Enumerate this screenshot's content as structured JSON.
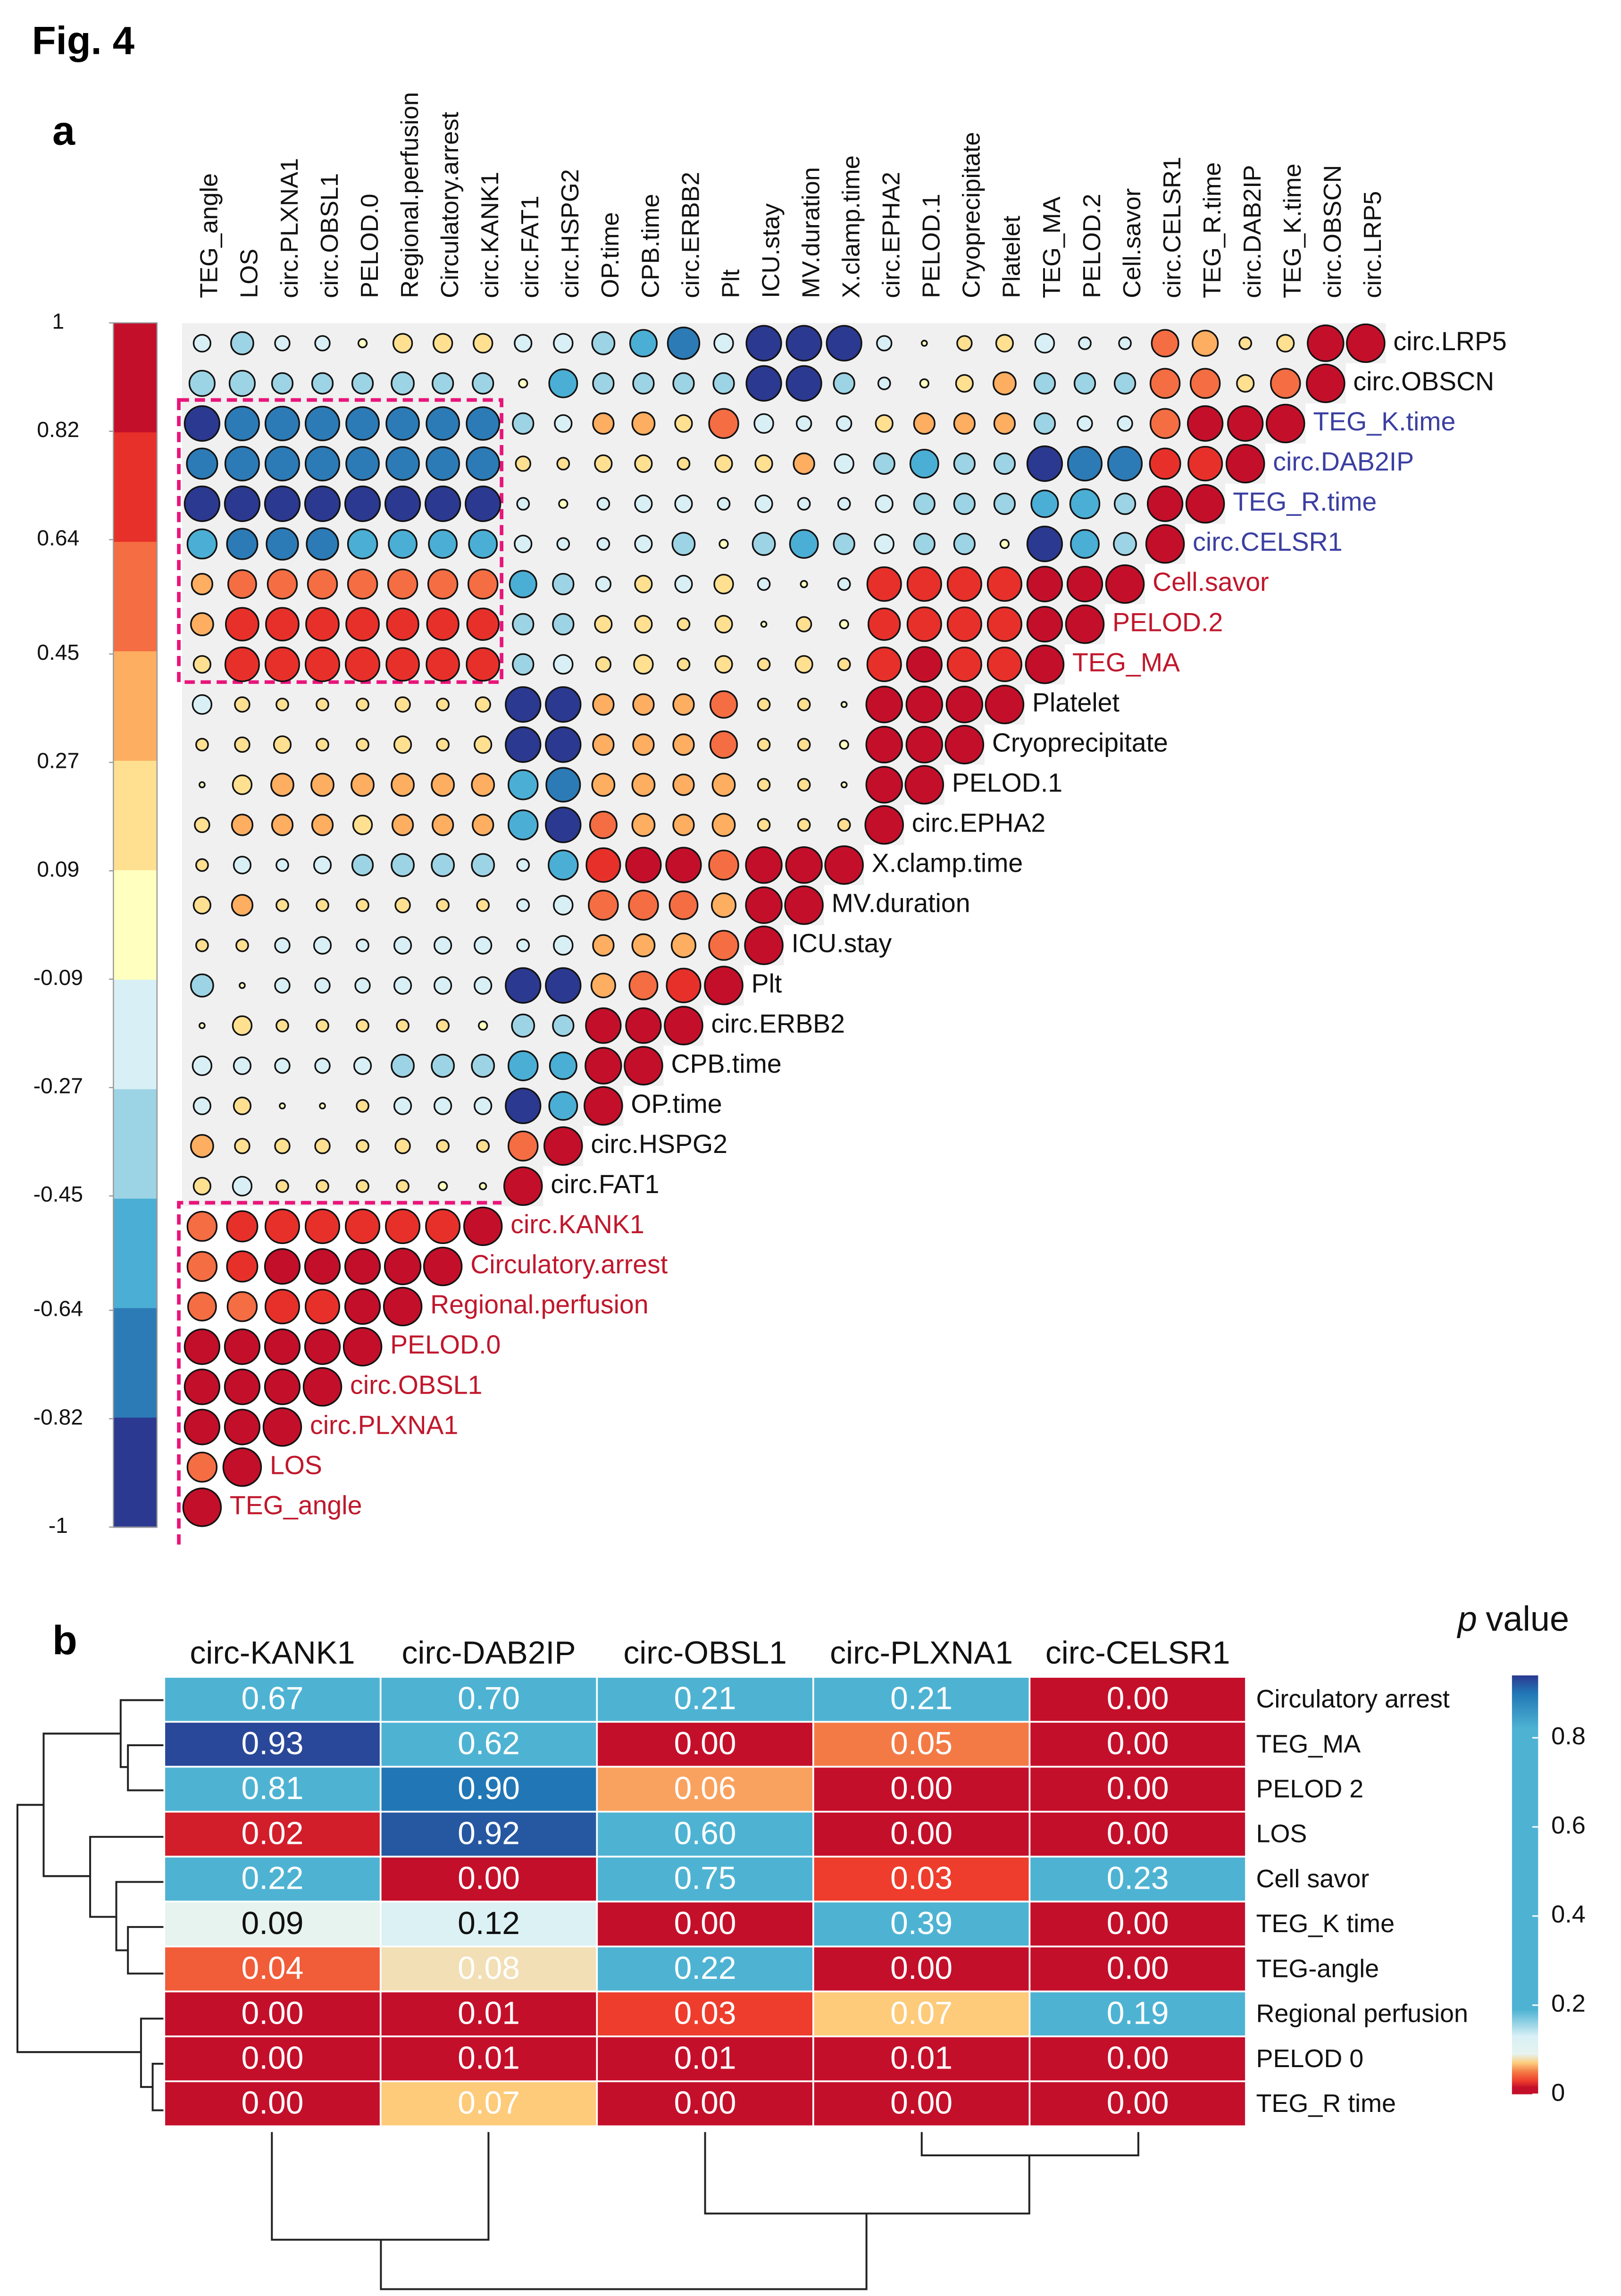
{
  "figure_label": "Fig. 4",
  "chart_data": [
    {
      "type": "correlogram",
      "panel": "a",
      "variables": [
        "TEG_angle",
        "LOS",
        "circ.PLXNA1",
        "circ.OBSL1",
        "PELOD.0",
        "Regional.perfusion",
        "Circulatory.arrest",
        "circ.KANK1",
        "circ.FAT1",
        "circ.HSPG2",
        "OP.time",
        "CPB.time",
        "circ.ERBB2",
        "Plt",
        "ICU.stay",
        "MV.duration",
        "X.clamp.time",
        "circ.EPHA2",
        "PELOD.1",
        "Cryoprecipitate",
        "Platelet",
        "TEG_MA",
        "PELOD.2",
        "Cell.savor",
        "circ.CELSR1",
        "TEG_R.time",
        "circ.DAB2IP",
        "TEG_K.time",
        "circ.OBSCN",
        "circ.LRP5"
      ],
      "label_colors": [
        "#c0172c",
        "#c0172c",
        "#c0172c",
        "#c0172c",
        "#c0172c",
        "#c0172c",
        "#c0172c",
        "#c0172c",
        "#111",
        "#111",
        "#111",
        "#111",
        "#111",
        "#111",
        "#111",
        "#111",
        "#111",
        "#111",
        "#111",
        "#111",
        "#111",
        "#c0172c",
        "#c0172c",
        "#c0172c",
        "#3b3fa0",
        "#3b3fa0",
        "#3b3fa0",
        "#3b3fa0",
        "#111",
        "#111"
      ],
      "values": [
        [
          1
        ],
        [
          0.6,
          1
        ],
        [
          0.85,
          0.85,
          1
        ],
        [
          0.85,
          0.85,
          0.85,
          1
        ],
        [
          0.85,
          0.85,
          0.85,
          0.85,
          1
        ],
        [
          0.55,
          0.6,
          0.8,
          0.8,
          0.85,
          1
        ],
        [
          0.6,
          0.65,
          0.85,
          0.85,
          0.85,
          0.9,
          1
        ],
        [
          0.6,
          0.65,
          0.8,
          0.8,
          0.8,
          0.8,
          0.8,
          1
        ],
        [
          0.2,
          -0.25,
          0.1,
          0.1,
          0.1,
          0.1,
          0.05,
          0.03,
          1
        ],
        [
          0.35,
          0.15,
          0.15,
          0.15,
          0.1,
          0.15,
          0.1,
          0.1,
          0.6,
          1
        ],
        [
          -0.2,
          0.2,
          0.02,
          0.02,
          0.1,
          -0.2,
          -0.2,
          -0.2,
          -0.85,
          -0.55,
          1
        ],
        [
          -0.25,
          -0.2,
          -0.15,
          -0.15,
          -0.2,
          -0.35,
          -0.35,
          -0.35,
          -0.6,
          -0.5,
          0.9,
          1
        ],
        [
          0.02,
          0.25,
          0.1,
          0.1,
          0.1,
          0.1,
          0.1,
          0.05,
          -0.35,
          -0.3,
          0.85,
          0.85,
          1
        ],
        [
          -0.35,
          0.02,
          -0.15,
          -0.15,
          -0.15,
          -0.2,
          -0.2,
          -0.2,
          -0.85,
          -0.85,
          0.4,
          0.55,
          0.8,
          1
        ],
        [
          0.1,
          0.1,
          -0.15,
          -0.2,
          -0.1,
          -0.2,
          -0.2,
          -0.2,
          -0.1,
          -0.25,
          0.3,
          0.35,
          0.4,
          0.6,
          1
        ],
        [
          0.2,
          0.3,
          0.1,
          0.1,
          0.1,
          0.15,
          0.1,
          0.1,
          -0.1,
          -0.25,
          0.6,
          0.6,
          0.55,
          0.4,
          0.9,
          1
        ],
        [
          0.1,
          -0.2,
          -0.1,
          -0.2,
          -0.3,
          -0.35,
          -0.35,
          -0.35,
          -0.1,
          -0.6,
          0.8,
          0.85,
          0.85,
          0.6,
          0.9,
          0.9,
          1
        ],
        [
          0.15,
          0.3,
          0.3,
          0.3,
          0.25,
          0.3,
          0.3,
          0.3,
          -0.6,
          -0.85,
          0.5,
          0.35,
          0.3,
          0.35,
          0.1,
          0.1,
          0.1,
          1
        ],
        [
          0.02,
          0.25,
          0.35,
          0.35,
          0.35,
          0.35,
          0.35,
          0.35,
          -0.6,
          -0.8,
          0.35,
          0.35,
          0.3,
          0.35,
          0.1,
          0.1,
          0.02,
          0.9,
          1
        ],
        [
          0.1,
          0.15,
          0.2,
          0.1,
          0.1,
          0.2,
          0.1,
          0.2,
          -0.85,
          -0.85,
          0.3,
          0.3,
          0.3,
          0.5,
          0.1,
          0.1,
          0.05,
          0.9,
          0.9,
          1
        ],
        [
          -0.25,
          0.15,
          0.1,
          0.1,
          0.1,
          0.15,
          0.1,
          0.15,
          -0.85,
          -0.85,
          0.3,
          0.3,
          0.3,
          0.5,
          0.1,
          0.1,
          0.02,
          0.9,
          0.9,
          0.9,
          1
        ],
        [
          0.2,
          0.8,
          0.8,
          0.8,
          0.8,
          0.75,
          0.75,
          0.75,
          -0.3,
          -0.25,
          0.15,
          0.25,
          0.1,
          0.2,
          0.1,
          0.2,
          0.1,
          0.8,
          0.85,
          0.8,
          0.8,
          1
        ],
        [
          0.35,
          0.75,
          0.75,
          0.75,
          0.75,
          0.7,
          0.7,
          0.7,
          -0.3,
          -0.3,
          0.2,
          0.2,
          0.1,
          0.2,
          0.02,
          0.15,
          0.05,
          0.7,
          0.8,
          0.8,
          0.8,
          0.85,
          1
        ],
        [
          0.3,
          0.55,
          0.6,
          0.6,
          0.6,
          0.6,
          0.6,
          0.6,
          -0.5,
          -0.3,
          -0.15,
          0.2,
          -0.2,
          0.25,
          -0.1,
          0.03,
          -0.1,
          0.8,
          0.8,
          0.8,
          0.8,
          0.85,
          0.85,
          1
        ],
        [
          -0.6,
          -0.65,
          -0.7,
          -0.7,
          -0.6,
          -0.55,
          -0.55,
          -0.55,
          -0.2,
          -0.1,
          -0.1,
          -0.2,
          -0.35,
          -0.05,
          -0.35,
          -0.55,
          -0.3,
          -0.25,
          -0.3,
          -0.3,
          -0.05,
          -0.85,
          -0.55,
          -0.35,
          1
        ],
        [
          -0.85,
          -0.85,
          -0.85,
          -0.85,
          -0.85,
          -0.85,
          -0.85,
          -0.85,
          -0.1,
          -0.05,
          -0.1,
          -0.2,
          -0.2,
          -0.1,
          -0.2,
          -0.1,
          -0.1,
          -0.2,
          -0.3,
          -0.3,
          -0.3,
          -0.5,
          -0.6,
          -0.3,
          0.85,
          1
        ],
        [
          -0.65,
          -0.8,
          -0.8,
          -0.8,
          -0.75,
          -0.75,
          -0.75,
          -0.75,
          0.15,
          0.1,
          0.2,
          0.2,
          0.1,
          0.2,
          0.2,
          0.3,
          -0.25,
          -0.3,
          -0.55,
          -0.3,
          -0.3,
          -0.85,
          -0.8,
          -0.8,
          0.65,
          0.8,
          1
        ],
        [
          -0.85,
          -0.8,
          -0.8,
          -0.8,
          -0.75,
          -0.75,
          -0.75,
          -0.75,
          -0.3,
          -0.2,
          0.3,
          0.35,
          0.2,
          0.6,
          -0.25,
          -0.15,
          -0.15,
          0.2,
          0.3,
          0.3,
          0.3,
          -0.3,
          -0.15,
          -0.15,
          0.6,
          0.85,
          0.85,
          1
        ],
        [
          -0.45,
          -0.45,
          -0.3,
          -0.3,
          -0.3,
          -0.35,
          -0.3,
          -0.3,
          -0.05,
          -0.55,
          -0.3,
          -0.3,
          -0.3,
          -0.3,
          -0.85,
          -0.85,
          -0.3,
          -0.1,
          -0.05,
          0.2,
          0.35,
          -0.3,
          -0.3,
          -0.3,
          0.6,
          0.6,
          0.2,
          0.6,
          1
        ],
        [
          -0.2,
          -0.35,
          -0.15,
          -0.15,
          0.05,
          0.25,
          0.25,
          0.25,
          -0.2,
          -0.25,
          -0.35,
          -0.5,
          -0.7,
          -0.25,
          -0.85,
          -0.85,
          -0.85,
          -0.15,
          0.02,
          0.15,
          0.2,
          -0.25,
          -0.1,
          -0.1,
          0.5,
          0.45,
          0.1,
          0.2,
          0.9,
          1
        ]
      ],
      "ylim": [
        -1,
        1
      ],
      "yticks": [
        1,
        0.82,
        0.64,
        0.45,
        0.27,
        0.09,
        -0.09,
        -0.27,
        -0.45,
        -0.64,
        -0.82,
        -1
      ],
      "colors": [
        "#c40f2a",
        "#e8302a",
        "#f46d43",
        "#fdae61",
        "#fee090",
        "#ffffc0",
        "#d8f0f5",
        "#9dd4e5",
        "#4baed4",
        "#2c7bb6",
        "#2b3990"
      ]
    },
    {
      "type": "heatmap",
      "panel": "b",
      "columns": [
        "circ-KANK1",
        "circ-DAB2IP",
        "circ-OBSL1",
        "circ-PLXNA1",
        "circ-CELSR1"
      ],
      "rows": [
        "Circulatory arrest",
        "TEG_MA",
        "PELOD 2",
        "LOS",
        "Cell savor",
        "TEG_K time",
        "TEG-angle",
        "Regional perfusion",
        "PELOD 0",
        "TEG_R time"
      ],
      "values": [
        [
          0.67,
          0.7,
          0.21,
          0.21,
          0
        ],
        [
          0.93,
          0.62,
          0,
          0.05,
          0
        ],
        [
          0.81,
          0.9,
          0.06,
          0,
          0
        ],
        [
          0.02,
          0.92,
          0.6,
          0,
          0
        ],
        [
          0.22,
          0,
          0.75,
          0.03,
          0.23
        ],
        [
          0.09,
          0.12,
          0,
          0.39,
          0
        ],
        [
          0.04,
          0.08,
          0.22,
          0,
          0
        ],
        [
          0,
          0.01,
          0.03,
          0.07,
          0.19
        ],
        [
          0,
          0.01,
          0.01,
          0.01,
          0
        ],
        [
          0,
          0.07,
          0,
          0,
          0
        ]
      ],
      "value_labels": [
        [
          "0.67",
          "0.70",
          "0.21",
          "0.21",
          "0.00"
        ],
        [
          "0.93",
          "0.62",
          "0.00",
          "0.05",
          "0.00"
        ],
        [
          "0.81",
          "0.90",
          "0.06",
          "0.00",
          "0.00"
        ],
        [
          "0.02",
          "0.92",
          "0.60",
          "0.00",
          "0.00"
        ],
        [
          "0.22",
          "0.00",
          "0.75",
          "0.03",
          "0.23"
        ],
        [
          "0.09",
          "0.12",
          "0.00",
          "0.39",
          "0.00"
        ],
        [
          "0.04",
          "0.08",
          "0.22",
          "0.00",
          "0.00"
        ],
        [
          "0.00",
          "0.01",
          "0.03",
          "0.07",
          "0.19"
        ],
        [
          "0.00",
          "0.01",
          "0.01",
          "0.01",
          "0.00"
        ],
        [
          "0.00",
          "0.07",
          "0.00",
          "0.00",
          "0.00"
        ]
      ],
      "legend_title": [
        "p",
        "value"
      ],
      "clim": [
        0,
        0.94
      ],
      "ticks": [
        0,
        0.2,
        0.4,
        0.6,
        0.8
      ],
      "colorscale": [
        [
          0,
          "#c40f2a"
        ],
        [
          0.015,
          "#c40f2a"
        ],
        [
          0.03,
          "#ee3d2c"
        ],
        [
          0.05,
          "#f47a45"
        ],
        [
          0.07,
          "#fdcb7a"
        ],
        [
          0.09,
          "#e6f3ef"
        ],
        [
          0.13,
          "#d8f0f6"
        ],
        [
          0.19,
          "#4eb3d3"
        ],
        [
          0.82,
          "#4eb3d3"
        ],
        [
          0.9,
          "#2177b5"
        ],
        [
          0.94,
          "#2b3990"
        ]
      ]
    }
  ]
}
